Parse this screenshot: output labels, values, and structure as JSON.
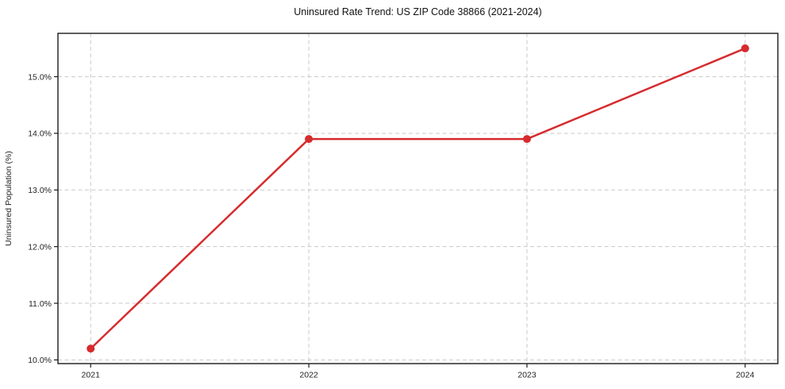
{
  "chart_data": {
    "type": "line",
    "title": "Uninsured Rate Trend: US ZIP Code 38866 (2021-2024)",
    "xlabel": "",
    "ylabel": "Uninsured Population (%)",
    "x": [
      2021,
      2022,
      2023,
      2024
    ],
    "series": [
      {
        "name": "uninsured-rate",
        "values": [
          10.2,
          13.9,
          13.9,
          15.5
        ]
      }
    ],
    "x_tick_labels": [
      "2021",
      "2022",
      "2023",
      "2024"
    ],
    "y_ticks": [
      10.0,
      11.0,
      12.0,
      13.0,
      14.0,
      15.0
    ],
    "y_tick_labels": [
      "10.0%",
      "11.0%",
      "12.0%",
      "13.0%",
      "14.0%",
      "15.0%"
    ],
    "xlim": [
      2020.85,
      2024.15
    ],
    "ylim": [
      9.935,
      15.765
    ],
    "grid": true,
    "grid_style": "dashed",
    "legend": false,
    "line_color": "#d62b2e",
    "marker": "circle",
    "marker_radius": 5,
    "line_width": 2.5,
    "grid_color": "#c9c9c9",
    "axis_color": "#1a1a1a",
    "background": "#ffffff"
  }
}
